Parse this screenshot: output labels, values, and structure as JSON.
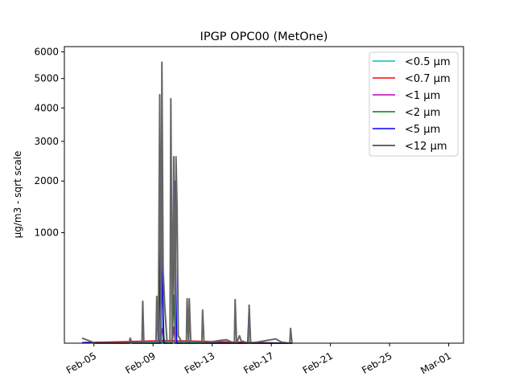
{
  "chart_data": {
    "type": "line",
    "title": "IPGP OPC00 (MetOne)",
    "xlabel": "",
    "ylabel": "µg/m3 - sqrt scale",
    "y_scale": "sqrt",
    "x_unit": "day of February (2023)",
    "xlim": [
      3.0,
      30.0
    ],
    "ylim": [
      13,
      6210
    ],
    "x_ticks": [
      5,
      9,
      13,
      17,
      21,
      25,
      29
    ],
    "x_tick_labels": [
      "Feb-05",
      "Feb-09",
      "Feb-13",
      "Feb-17",
      "Feb-21",
      "Feb-25",
      "Mar-01"
    ],
    "y_ticks": [
      1000,
      2000,
      3000,
      4000,
      5000,
      6000
    ],
    "y_tick_labels": [
      "1000",
      "2000",
      "3000",
      "4000",
      "5000",
      "6000"
    ],
    "grid": false,
    "legend_position": "top-right",
    "series": [
      {
        "name": "<0.5 µm",
        "color": "#00bfbf",
        "points": [
          [
            4.2,
            14
          ],
          [
            9.6,
            16
          ],
          [
            10.3,
            16
          ],
          [
            18.4,
            13
          ]
        ]
      },
      {
        "name": "<0.7 µm",
        "color": "#ff0000",
        "points": [
          [
            4.2,
            14
          ],
          [
            9.6,
            18
          ],
          [
            10.3,
            18
          ],
          [
            18.4,
            13
          ]
        ]
      },
      {
        "name": "<1 µm",
        "color": "#bf00bf",
        "points": [
          [
            4.2,
            14
          ],
          [
            9.5,
            13
          ],
          [
            9.65,
            54
          ],
          [
            9.8,
            13
          ],
          [
            10.3,
            13
          ],
          [
            10.4,
            60
          ],
          [
            10.5,
            13
          ],
          [
            18.4,
            13
          ]
        ]
      },
      {
        "name": "<2 µm",
        "color": "#008000",
        "points": [
          [
            4.2,
            14
          ],
          [
            9.5,
            13
          ],
          [
            9.6,
            457
          ],
          [
            9.75,
            13
          ],
          [
            10.3,
            13
          ],
          [
            10.4,
            250
          ],
          [
            10.5,
            13
          ],
          [
            18.4,
            13
          ]
        ]
      },
      {
        "name": "<5 µm",
        "color": "#0000ff",
        "points": [
          [
            4.2,
            14
          ],
          [
            9.4,
            13
          ],
          [
            9.55,
            2390
          ],
          [
            9.7,
            13
          ],
          [
            10.3,
            13
          ],
          [
            10.45,
            2000
          ],
          [
            10.6,
            13
          ],
          [
            15.4,
            13
          ],
          [
            15.5,
            175
          ],
          [
            15.6,
            13
          ],
          [
            18.4,
            13
          ]
        ]
      },
      {
        "name": "<12 µm",
        "color": "#666666",
        "points": [
          [
            4.2,
            24
          ],
          [
            5.1,
            13
          ],
          [
            7.4,
            13
          ],
          [
            7.45,
            24
          ],
          [
            7.6,
            13
          ],
          [
            8.25,
            13
          ],
          [
            8.3,
            203
          ],
          [
            8.38,
            13
          ],
          [
            9.2,
            13
          ],
          [
            9.25,
            240
          ],
          [
            9.35,
            13
          ],
          [
            9.45,
            4435
          ],
          [
            9.55,
            13
          ],
          [
            9.6,
            5600
          ],
          [
            9.68,
            500
          ],
          [
            9.8,
            150
          ],
          [
            9.95,
            13
          ],
          [
            10.15,
            13
          ],
          [
            10.2,
            4300
          ],
          [
            10.3,
            13
          ],
          [
            10.4,
            2590
          ],
          [
            10.5,
            13
          ],
          [
            10.55,
            2590
          ],
          [
            10.62,
            1500
          ],
          [
            10.7,
            30
          ],
          [
            11.0,
            13
          ],
          [
            11.25,
            13
          ],
          [
            11.3,
            221
          ],
          [
            11.4,
            13
          ],
          [
            11.45,
            221
          ],
          [
            11.55,
            13
          ],
          [
            12.3,
            13
          ],
          [
            12.35,
            144
          ],
          [
            12.45,
            13
          ],
          [
            13.4,
            18
          ],
          [
            13.95,
            20
          ],
          [
            14.5,
            13
          ],
          [
            14.55,
            215
          ],
          [
            14.65,
            13
          ],
          [
            14.85,
            30
          ],
          [
            14.95,
            18
          ],
          [
            15.45,
            13
          ],
          [
            15.5,
            175
          ],
          [
            15.6,
            13
          ],
          [
            17.3,
            22
          ],
          [
            17.7,
            15
          ],
          [
            18.25,
            13
          ],
          [
            18.3,
            54
          ],
          [
            18.4,
            13
          ]
        ]
      }
    ]
  }
}
